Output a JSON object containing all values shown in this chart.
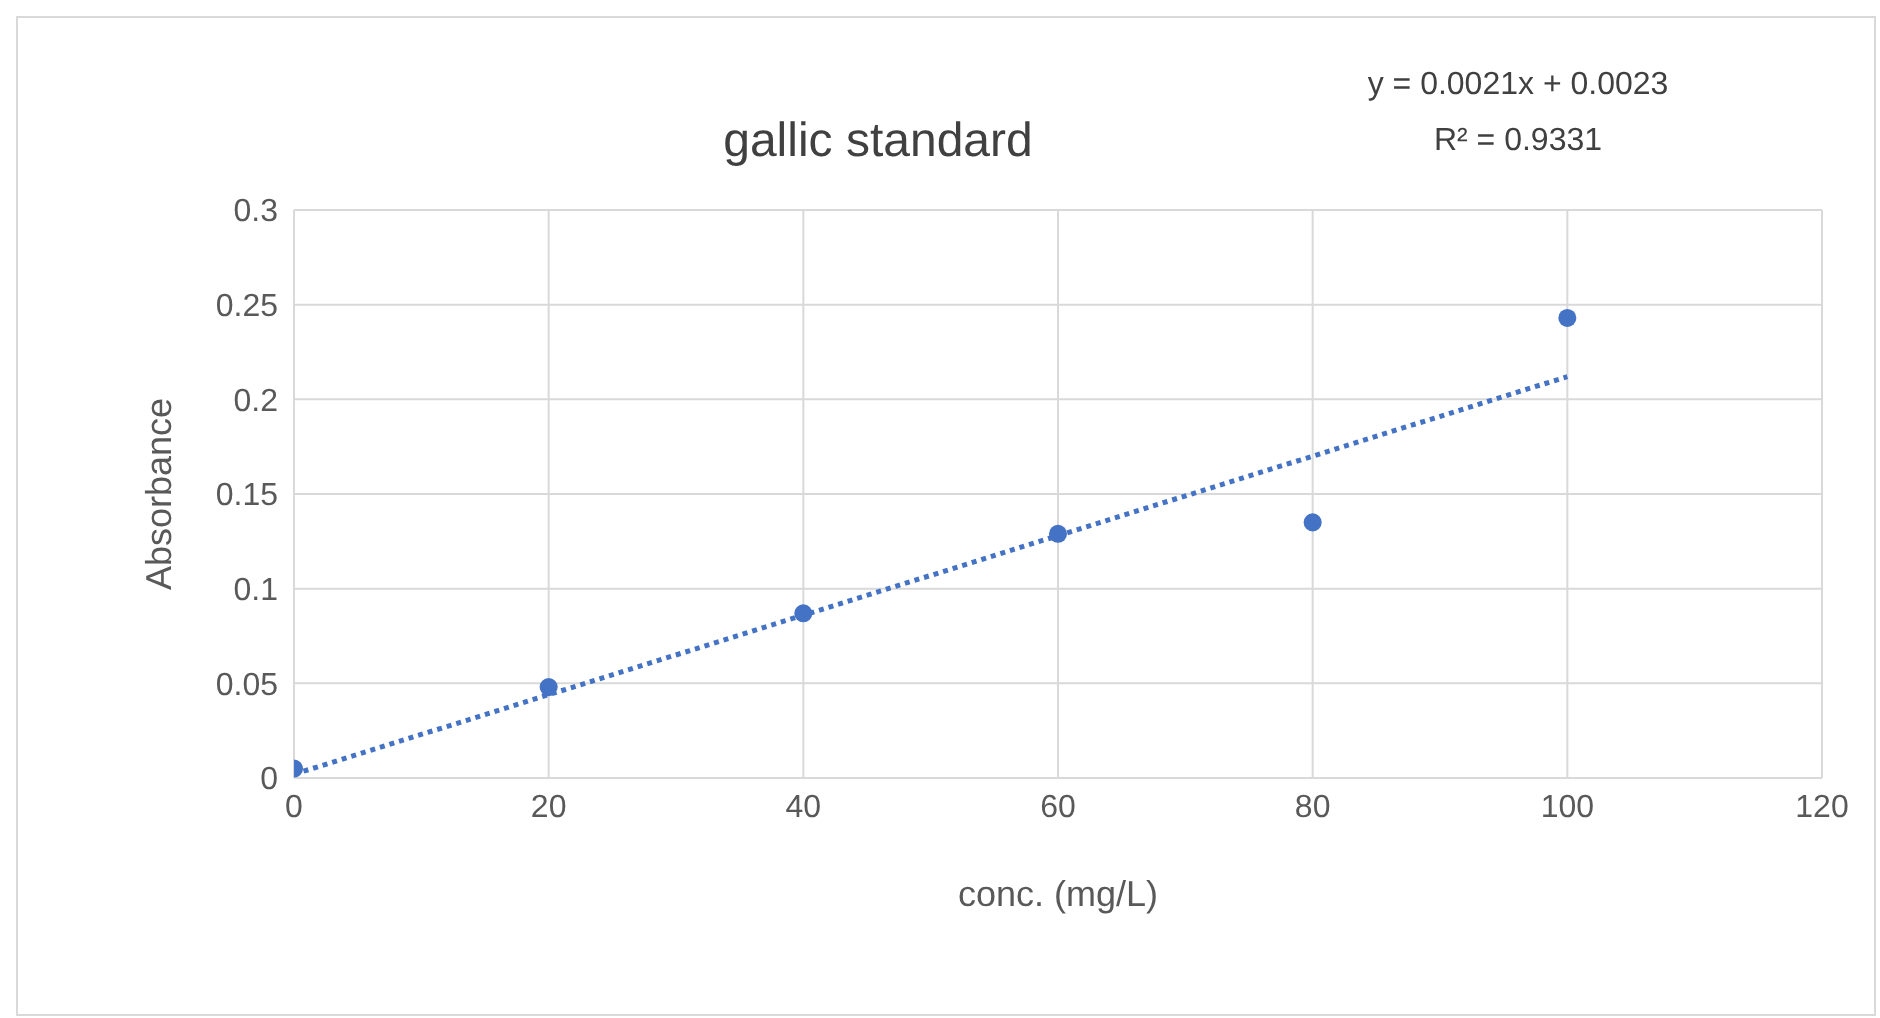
{
  "chart_data": {
    "type": "scatter",
    "title": "gallic standard",
    "xlabel": "conc. (mg/L)",
    "ylabel": "Absorbance",
    "annotations": [
      "y = 0.0021x + 0.0023",
      "R² = 0.9331"
    ],
    "series": [
      {
        "color": "#4472c4",
        "x": [
          0,
          20,
          40,
          60,
          80,
          100
        ],
        "values": [
          0.005,
          0.048,
          0.087,
          0.129,
          0.135,
          0.243
        ],
        "marker": "circle"
      },
      {
        "type": "line",
        "color": "#4472c4",
        "x": [
          0,
          100
        ],
        "values": [
          0.002,
          0.212
        ],
        "line_style": "dotted",
        "marker": "none"
      }
    ],
    "xlim": [
      0,
      120
    ],
    "xticks": [
      0,
      20,
      40,
      60,
      80,
      100,
      120
    ],
    "ylim": [
      0,
      0.3
    ],
    "yticks": [
      0,
      0.05,
      0.1,
      0.15,
      0.2,
      0.25,
      0.3
    ],
    "grid": true
  }
}
